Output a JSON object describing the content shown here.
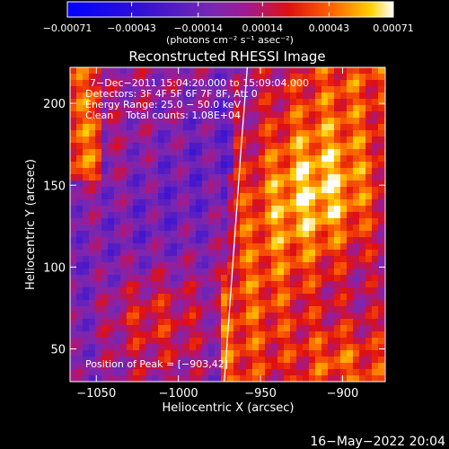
{
  "chart_data": {
    "type": "heatmap",
    "title": "Reconstructed RHESSI Image",
    "xlabel": "Heliocentric X (arcsec)",
    "ylabel": "Heliocentric Y (arcsec)",
    "xlim": [
      -1066,
      -874
    ],
    "ylim": [
      30,
      222
    ],
    "x_ticks": [
      -1050,
      -1000,
      -950,
      -900
    ],
    "y_ticks": [
      50,
      100,
      150,
      200
    ],
    "x_tick_labels": [
      "−1050",
      "−1000",
      "−950",
      "−900"
    ],
    "y_tick_labels": [
      "50",
      "100",
      "150",
      "200"
    ],
    "colorbar": {
      "min": -0.00071,
      "max": 0.00071,
      "ticks": [
        -0.00071,
        -0.00043,
        -0.00014,
        0.00014,
        0.00043,
        0.00071
      ],
      "tick_labels": [
        "−0.00071",
        "−0.00043",
        "−0.00014",
        "0.00014",
        "0.00043",
        "0.00071"
      ],
      "units_label": "(photons cm⁻² s⁻¹ asec⁻²)"
    },
    "annotations": {
      "time_range": "7−Dec−2011 15:04:20.000 to 15:09:04.000",
      "detectors": "Detectors: 3F 4F 5F 6F 7F 8F, Att 0",
      "energy_range": "Energy Range: 25.0 − 50.0 keV",
      "method_counts": "Clean    Total counts: 1.08E+04",
      "peak_position": "Position of Peak = [−903,42]"
    },
    "limb_curve": {
      "x": [
        -972,
        -967,
        -962,
        -958
      ],
      "y": [
        30,
        100,
        170,
        222
      ]
    },
    "footer_date": "16−May−2022 20:04"
  }
}
